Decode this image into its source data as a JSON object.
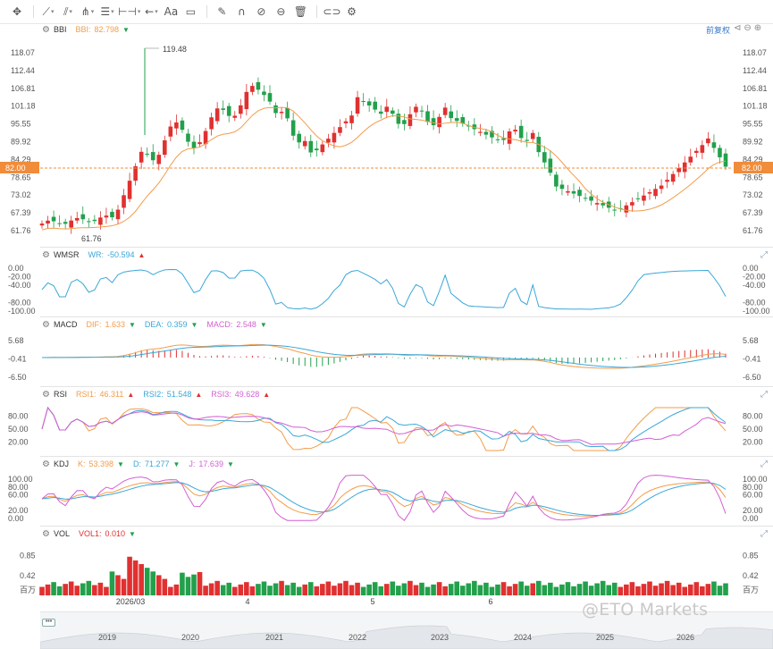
{
  "toolbar": {
    "icons": [
      "crosshair-icon",
      "trend-line-icon",
      "channel-icon",
      "fork-icon",
      "fibonacci-icon",
      "measure-icon",
      "arrow-icon",
      "text-icon",
      "comment-icon",
      "brush-icon",
      "magnet-icon",
      "eye-icon",
      "lock-icon",
      "trash-icon",
      "link-icon",
      "settings-icon"
    ],
    "text_label": "Aa"
  },
  "main": {
    "indicator": "BBI",
    "bbi_label": "BBI:",
    "bbi_value": "82.798",
    "adjust_label": "前复权",
    "current_price": "82.00",
    "high_marker": "119.48",
    "low_marker": "61.76",
    "y_ticks": [
      "118.07",
      "112.44",
      "106.81",
      "101.18",
      "95.55",
      "89.92",
      "84.29",
      "82.00",
      "78.65",
      "73.02",
      "67.39",
      "61.76"
    ],
    "colors": {
      "up": "#e03030",
      "down": "#22a04b",
      "bbi": "#f39c4a",
      "price_line": "#f08c3a"
    }
  },
  "wmsr": {
    "name": "WMSR",
    "label": "WR:",
    "value": "-50.594",
    "y_ticks": [
      "0.00",
      "-20.00",
      "-40.00",
      "-80.00",
      "-100.00"
    ]
  },
  "macd": {
    "name": "MACD",
    "dif_label": "DIF:",
    "dif_value": "1.633",
    "dea_label": "DEA:",
    "dea_value": "0.359",
    "macd_label": "MACD:",
    "macd_value": "2.548",
    "y_ticks": [
      "5.68",
      "-0.41",
      "-6.50"
    ]
  },
  "rsi": {
    "name": "RSI",
    "r1_label": "RSI1:",
    "r1_value": "46.311",
    "r2_label": "RSI2:",
    "r2_value": "51.548",
    "r3_label": "RSI3:",
    "r3_value": "49.628",
    "y_ticks": [
      "80.00",
      "50.00",
      "20.00"
    ]
  },
  "kdj": {
    "name": "KDJ",
    "k_label": "K:",
    "k_value": "53.398",
    "d_label": "D:",
    "d_value": "71.277",
    "j_label": "J:",
    "j_value": "17.639",
    "y_ticks": [
      "100.00",
      "80.00",
      "60.00",
      "20.00",
      "0.00"
    ]
  },
  "vol": {
    "name": "VOL",
    "label": "VOL1:",
    "value": "0.010",
    "y_ticks": [
      "0.85",
      "0.42",
      "百万"
    ]
  },
  "x_axis": {
    "labels": [
      "2026/03",
      "4",
      "5",
      "6"
    ]
  },
  "navigator": {
    "years": [
      "2019",
      "2020",
      "2021",
      "2022",
      "2023",
      "2024",
      "2025",
      "2026"
    ],
    "button_label": "•••"
  },
  "watermark": "@ETO Markets"
}
